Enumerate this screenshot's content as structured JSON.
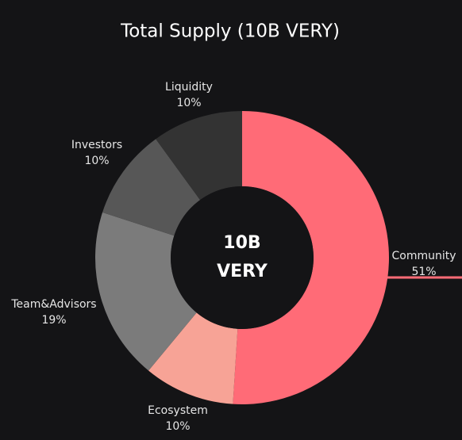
{
  "chart_data": {
    "type": "donut",
    "title": "Total Supply (10B VERY)",
    "center_label": [
      "10B",
      "VERY"
    ],
    "categories": [
      "Community",
      "Ecosystem",
      "Team&Advisors",
      "Investors",
      "Liquidity"
    ],
    "values": [
      51,
      10,
      19,
      10,
      10
    ],
    "value_labels": [
      "51%",
      "10%",
      "19%",
      "10%",
      "10%"
    ],
    "colors": [
      "#ff6b77",
      "#f7a396",
      "#7b7b7b",
      "#575757",
      "#333333"
    ]
  }
}
